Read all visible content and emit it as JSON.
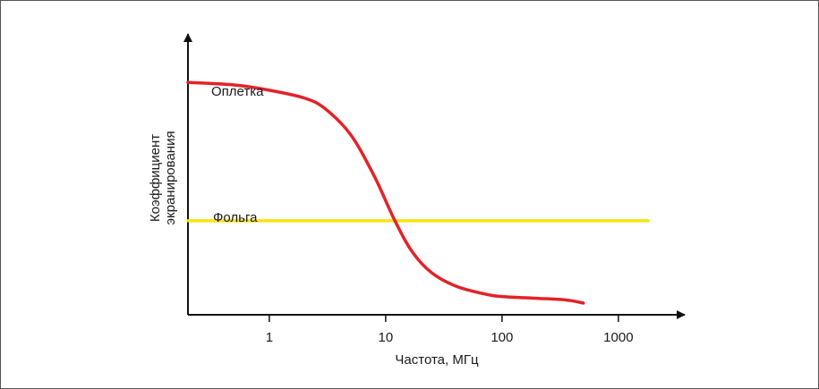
{
  "chart_data": {
    "type": "line",
    "title": "",
    "xlabel": "Частота, МГц",
    "ylabel_lines": [
      "Коэффициент",
      "экранирования"
    ],
    "x_scale": "log",
    "xlim": [
      0.2,
      2000
    ],
    "ylim": [
      0,
      100
    ],
    "x_ticks": [
      {
        "value": 1,
        "label": "1"
      },
      {
        "value": 10,
        "label": "10"
      },
      {
        "value": 100,
        "label": "100"
      },
      {
        "value": 1000,
        "label": "1000"
      }
    ],
    "y_tick_labels_shown": false,
    "grid": false,
    "series": [
      {
        "name": "Оплетка",
        "color": "#e32228",
        "x": [
          0.2,
          0.5,
          1,
          2,
          3,
          5,
          8,
          12,
          17,
          25,
          40,
          70,
          100,
          200,
          350,
          500
        ],
        "y": [
          89,
          88,
          86,
          83,
          79,
          69,
          53,
          36,
          24,
          16,
          11,
          8,
          7,
          6.3,
          5.7,
          4.5
        ]
      },
      {
        "name": "Фольга",
        "color": "#f5e510",
        "x": [
          0.2,
          1800
        ],
        "y": [
          36,
          36
        ]
      }
    ],
    "axis_color": "#111111"
  }
}
